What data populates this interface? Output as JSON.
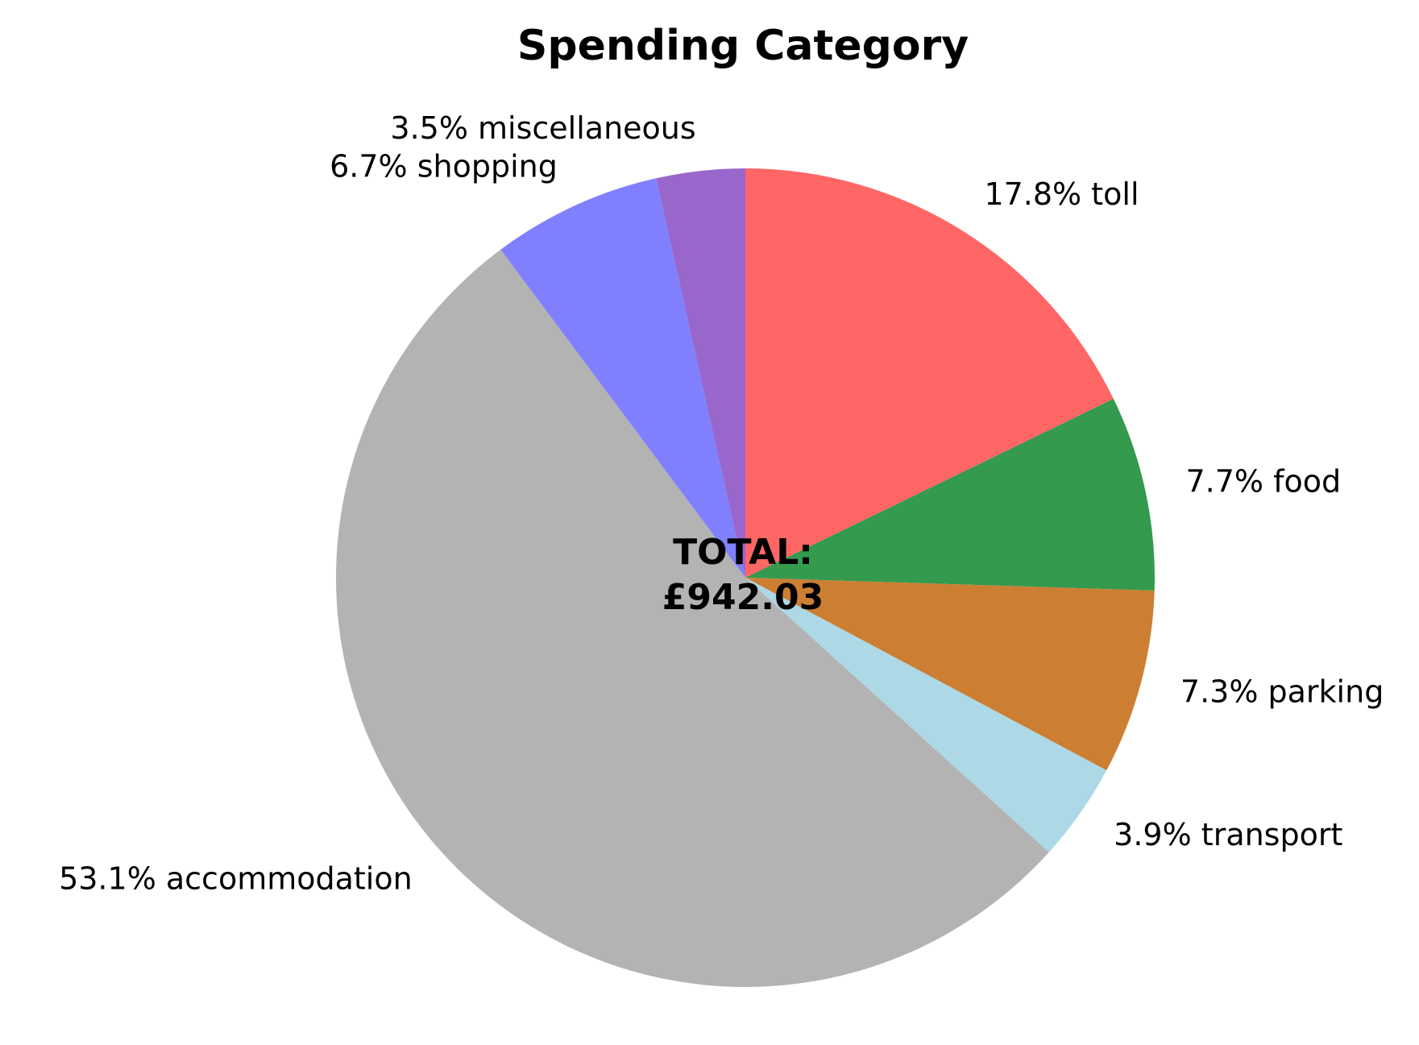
{
  "chart_data": {
    "type": "pie",
    "title": "Spending Category",
    "center_label": [
      "TOTAL:",
      "£942.03"
    ],
    "start_angle_deg": 90,
    "direction": "clockwise",
    "slices": [
      {
        "category": "toll",
        "percent": 17.8,
        "label": "17.8% toll",
        "color": "#ff6666"
      },
      {
        "category": "food",
        "percent": 7.7,
        "label": "7.7% food",
        "color": "#339a4e"
      },
      {
        "category": "parking",
        "percent": 7.3,
        "label": "7.3% parking",
        "color": "#cc7f33"
      },
      {
        "category": "transport",
        "percent": 3.9,
        "label": "3.9% transport",
        "color": "#add8e6"
      },
      {
        "category": "accommodation",
        "percent": 53.1,
        "label": "53.1% accommodation",
        "color": "#b3b3b3"
      },
      {
        "category": "shopping",
        "percent": 6.7,
        "label": "6.7% shopping",
        "color": "#8080ff"
      },
      {
        "category": "miscellaneous",
        "percent": 3.5,
        "label": "3.5% miscellaneous",
        "color": "#9966cc"
      }
    ]
  }
}
